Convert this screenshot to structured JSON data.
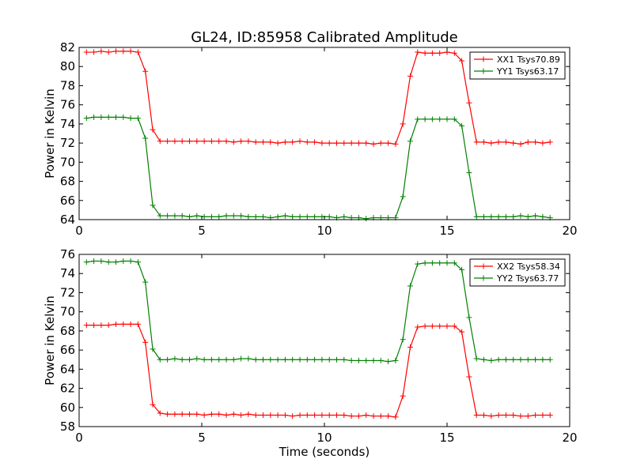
{
  "figure": {
    "title": "GL24, ID:85958 Calibrated Amplitude"
  },
  "chart_data": [
    {
      "type": "line",
      "title": "GL24, ID:85958 Calibrated Amplitude",
      "xlabel": "",
      "ylabel": "Power in Kelvin",
      "xlim": [
        0,
        20
      ],
      "ylim": [
        64,
        82
      ],
      "xticks": [
        0,
        5,
        10,
        15,
        20
      ],
      "yticks": [
        64,
        66,
        68,
        70,
        72,
        74,
        76,
        78,
        80,
        82
      ],
      "legend": "top-right",
      "grid": false,
      "x": [
        0.3,
        0.6,
        0.9,
        1.2,
        1.5,
        1.8,
        2.1,
        2.4,
        2.7,
        3.0,
        3.3,
        3.6,
        3.9,
        4.2,
        4.5,
        4.8,
        5.1,
        5.4,
        5.7,
        6.0,
        6.3,
        6.6,
        6.9,
        7.2,
        7.5,
        7.8,
        8.1,
        8.4,
        8.7,
        9.0,
        9.3,
        9.6,
        9.9,
        10.2,
        10.5,
        10.8,
        11.1,
        11.4,
        11.7,
        12.0,
        12.3,
        12.6,
        12.9,
        13.2,
        13.5,
        13.8,
        14.1,
        14.4,
        14.7,
        15.0,
        15.3,
        15.6,
        15.9,
        16.2,
        16.5,
        16.8,
        17.1,
        17.4,
        17.7,
        18.0,
        18.3,
        18.6,
        18.9,
        19.2
      ],
      "series": [
        {
          "name": "XX1 Tsys70.89",
          "color": "#ff0000",
          "values": [
            81.5,
            81.5,
            81.6,
            81.5,
            81.6,
            81.6,
            81.6,
            81.5,
            79.5,
            73.4,
            72.2,
            72.2,
            72.2,
            72.2,
            72.2,
            72.2,
            72.2,
            72.2,
            72.2,
            72.2,
            72.1,
            72.2,
            72.2,
            72.1,
            72.1,
            72.1,
            72.0,
            72.1,
            72.1,
            72.2,
            72.1,
            72.1,
            72.0,
            72.0,
            72.0,
            72.0,
            72.0,
            72.0,
            72.0,
            71.9,
            72.0,
            72.0,
            71.9,
            74.0,
            79.0,
            81.5,
            81.4,
            81.4,
            81.4,
            81.5,
            81.4,
            80.6,
            76.2,
            72.1,
            72.1,
            72.0,
            72.1,
            72.1,
            72.0,
            71.9,
            72.1,
            72.1,
            72.0,
            72.1
          ]
        },
        {
          "name": "YY1 Tsys63.17",
          "color": "#008000",
          "values": [
            74.6,
            74.7,
            74.7,
            74.7,
            74.7,
            74.7,
            74.6,
            74.6,
            72.5,
            65.5,
            64.4,
            64.4,
            64.4,
            64.4,
            64.3,
            64.4,
            64.3,
            64.3,
            64.3,
            64.4,
            64.4,
            64.4,
            64.3,
            64.3,
            64.3,
            64.2,
            64.3,
            64.4,
            64.3,
            64.3,
            64.3,
            64.3,
            64.3,
            64.3,
            64.2,
            64.3,
            64.2,
            64.2,
            64.1,
            64.2,
            64.2,
            64.2,
            64.2,
            66.4,
            72.2,
            74.5,
            74.5,
            74.5,
            74.5,
            74.5,
            74.5,
            73.8,
            68.9,
            64.3,
            64.3,
            64.3,
            64.3,
            64.3,
            64.3,
            64.4,
            64.3,
            64.4,
            64.3,
            64.2
          ]
        }
      ]
    },
    {
      "type": "line",
      "title": "",
      "xlabel": "Time (seconds)",
      "ylabel": "Power in Kelvin",
      "xlim": [
        0,
        20
      ],
      "ylim": [
        58,
        76
      ],
      "xticks": [
        0,
        5,
        10,
        15,
        20
      ],
      "yticks": [
        58,
        60,
        62,
        64,
        66,
        68,
        70,
        72,
        74,
        76
      ],
      "legend": "top-right",
      "grid": false,
      "x": [
        0.3,
        0.6,
        0.9,
        1.2,
        1.5,
        1.8,
        2.1,
        2.4,
        2.7,
        3.0,
        3.3,
        3.6,
        3.9,
        4.2,
        4.5,
        4.8,
        5.1,
        5.4,
        5.7,
        6.0,
        6.3,
        6.6,
        6.9,
        7.2,
        7.5,
        7.8,
        8.1,
        8.4,
        8.7,
        9.0,
        9.3,
        9.6,
        9.9,
        10.2,
        10.5,
        10.8,
        11.1,
        11.4,
        11.7,
        12.0,
        12.3,
        12.6,
        12.9,
        13.2,
        13.5,
        13.8,
        14.1,
        14.4,
        14.7,
        15.0,
        15.3,
        15.6,
        15.9,
        16.2,
        16.5,
        16.8,
        17.1,
        17.4,
        17.7,
        18.0,
        18.3,
        18.6,
        18.9,
        19.2
      ],
      "series": [
        {
          "name": "XX2 Tsys58.34",
          "color": "#ff0000",
          "values": [
            68.6,
            68.6,
            68.6,
            68.6,
            68.7,
            68.7,
            68.7,
            68.7,
            66.8,
            60.3,
            59.4,
            59.3,
            59.3,
            59.3,
            59.3,
            59.3,
            59.2,
            59.3,
            59.3,
            59.2,
            59.3,
            59.2,
            59.3,
            59.2,
            59.2,
            59.2,
            59.2,
            59.2,
            59.1,
            59.2,
            59.2,
            59.2,
            59.2,
            59.2,
            59.2,
            59.2,
            59.1,
            59.1,
            59.2,
            59.1,
            59.1,
            59.1,
            59.0,
            61.2,
            66.3,
            68.4,
            68.5,
            68.5,
            68.5,
            68.5,
            68.5,
            67.9,
            63.2,
            59.2,
            59.2,
            59.1,
            59.2,
            59.2,
            59.2,
            59.1,
            59.1,
            59.2,
            59.2,
            59.2
          ]
        },
        {
          "name": "YY2 Tsys63.77",
          "color": "#008000",
          "values": [
            75.2,
            75.3,
            75.3,
            75.2,
            75.2,
            75.3,
            75.3,
            75.2,
            73.1,
            66.1,
            65.0,
            65.0,
            65.1,
            65.0,
            65.0,
            65.1,
            65.0,
            65.0,
            65.0,
            65.0,
            65.0,
            65.1,
            65.1,
            65.0,
            65.0,
            65.0,
            65.0,
            65.0,
            65.0,
            65.0,
            65.0,
            65.0,
            65.0,
            65.0,
            65.0,
            65.0,
            64.9,
            64.9,
            64.9,
            64.9,
            64.9,
            64.8,
            64.9,
            67.1,
            72.7,
            75.0,
            75.1,
            75.1,
            75.1,
            75.1,
            75.1,
            74.4,
            69.4,
            65.1,
            65.0,
            64.9,
            65.0,
            65.0,
            65.0,
            65.0,
            65.0,
            65.0,
            65.0,
            65.0
          ]
        }
      ]
    }
  ]
}
